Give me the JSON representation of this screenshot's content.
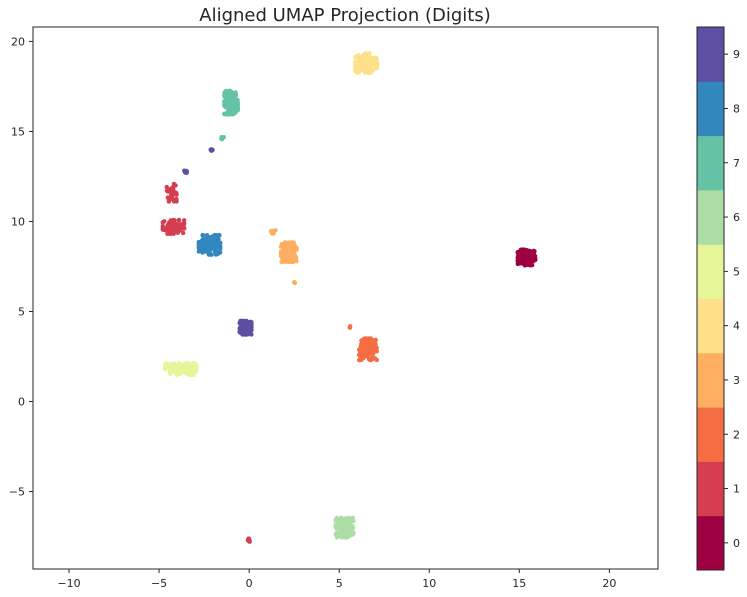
{
  "chart_data": {
    "type": "scatter",
    "title": "Aligned UMAP Projection (Digits)",
    "xlabel": "",
    "ylabel": "",
    "xlim": [
      -12,
      22.7
    ],
    "ylim": [
      -9.3,
      20.8
    ],
    "xticks": [
      -10,
      -5,
      0,
      5,
      10,
      15,
      20
    ],
    "yticks": [
      -5,
      0,
      5,
      10,
      15,
      20
    ],
    "xtick_labels": [
      "−10",
      "−5",
      "0",
      "5",
      "10",
      "15",
      "20"
    ],
    "ytick_labels": [
      "−5",
      "0",
      "5",
      "10",
      "15",
      "20"
    ],
    "grid": false,
    "colorbar": {
      "ticks": [
        0,
        1,
        2,
        3,
        4,
        5,
        6,
        7,
        8,
        9
      ],
      "tick_labels": [
        "0",
        "1",
        "2",
        "3",
        "4",
        "5",
        "6",
        "7",
        "8",
        "9"
      ],
      "colors": [
        "#9e0142",
        "#d53e4f",
        "#f46d43",
        "#fdae61",
        "#fee08b",
        "#e6f598",
        "#abdda4",
        "#66c2a5",
        "#3288bd",
        "#5e4fa2"
      ]
    },
    "clusters": [
      {
        "label": 0,
        "center": [
          15.4,
          8.0
        ],
        "spread": [
          0.45,
          0.4
        ],
        "count": 160
      },
      {
        "label": 1,
        "center": [
          -4.3,
          11.6
        ],
        "spread": [
          0.25,
          0.45
        ],
        "count": 40
      },
      {
        "label": 1,
        "center": [
          -4.2,
          9.7
        ],
        "spread": [
          0.55,
          0.35
        ],
        "count": 90
      },
      {
        "label": 1,
        "center": [
          0.0,
          -7.7
        ],
        "spread": [
          0.08,
          0.08
        ],
        "count": 8
      },
      {
        "label": 2,
        "center": [
          6.6,
          2.9
        ],
        "spread": [
          0.45,
          0.55
        ],
        "count": 150
      },
      {
        "label": 2,
        "center": [
          5.6,
          4.1
        ],
        "spread": [
          0.1,
          0.1
        ],
        "count": 3
      },
      {
        "label": 3,
        "center": [
          2.2,
          8.3
        ],
        "spread": [
          0.4,
          0.5
        ],
        "count": 120
      },
      {
        "label": 3,
        "center": [
          1.3,
          9.4
        ],
        "spread": [
          0.15,
          0.1
        ],
        "count": 8
      },
      {
        "label": 3,
        "center": [
          2.5,
          6.6
        ],
        "spread": [
          0.05,
          0.1
        ],
        "count": 4
      },
      {
        "label": 4,
        "center": [
          6.5,
          18.8
        ],
        "spread": [
          0.55,
          0.5
        ],
        "count": 150
      },
      {
        "label": 5,
        "center": [
          -3.8,
          1.8
        ],
        "spread": [
          0.8,
          0.3
        ],
        "count": 130
      },
      {
        "label": 6,
        "center": [
          5.3,
          -7.0
        ],
        "spread": [
          0.45,
          0.5
        ],
        "count": 150
      },
      {
        "label": 7,
        "center": [
          -1.0,
          16.6
        ],
        "spread": [
          0.35,
          0.6
        ],
        "count": 140
      },
      {
        "label": 7,
        "center": [
          -1.5,
          14.6
        ],
        "spread": [
          0.1,
          0.1
        ],
        "count": 5
      },
      {
        "label": 8,
        "center": [
          -2.2,
          8.7
        ],
        "spread": [
          0.55,
          0.5
        ],
        "count": 150
      },
      {
        "label": 9,
        "center": [
          -0.2,
          4.1
        ],
        "spread": [
          0.3,
          0.35
        ],
        "count": 140
      },
      {
        "label": 9,
        "center": [
          -3.5,
          12.8
        ],
        "spread": [
          0.1,
          0.15
        ],
        "count": 8
      },
      {
        "label": 9,
        "center": [
          -2.1,
          14.0
        ],
        "spread": [
          0.08,
          0.08
        ],
        "count": 5
      }
    ]
  }
}
